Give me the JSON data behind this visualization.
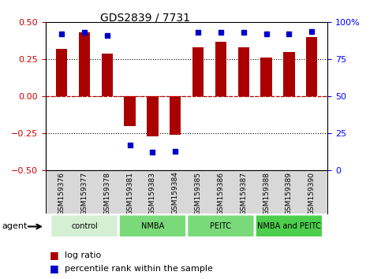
{
  "title": "GDS2839 / 7731",
  "samples": [
    "GSM159376",
    "GSM159377",
    "GSM159378",
    "GSM159381",
    "GSM159383",
    "GSM159384",
    "GSM159385",
    "GSM159386",
    "GSM159387",
    "GSM159388",
    "GSM159389",
    "GSM159390"
  ],
  "log_ratios": [
    0.32,
    0.43,
    0.29,
    -0.2,
    -0.27,
    -0.26,
    0.33,
    0.37,
    0.33,
    0.26,
    0.3,
    0.4
  ],
  "percentile_ranks": [
    92,
    93,
    91,
    17,
    12,
    13,
    93,
    93,
    93,
    92,
    92,
    94
  ],
  "bar_color": "#aa0000",
  "dot_color": "#0000cc",
  "ylim": [
    -0.5,
    0.5
  ],
  "right_ylim": [
    0,
    100
  ],
  "yticks_left": [
    -0.5,
    -0.25,
    0.0,
    0.25,
    0.5
  ],
  "yticks_right": [
    0,
    25,
    50,
    75,
    100
  ],
  "dotted_lines": [
    -0.25,
    0.0,
    0.25
  ],
  "plot_bg_color": "#ffffff",
  "agent_label": "agent",
  "legend_log_ratio": "log ratio",
  "legend_percentile": "percentile rank within the sample",
  "group_labels": [
    "control",
    "NMBA",
    "PEITC",
    "NMBA and PEITC"
  ],
  "group_starts": [
    0,
    3,
    6,
    9
  ],
  "group_ends": [
    3,
    6,
    9,
    12
  ],
  "group_colors": [
    "#d4f0d4",
    "#7ada7a",
    "#7ada7a",
    "#4dcf4d"
  ],
  "label_bg": "#d8d8d8"
}
